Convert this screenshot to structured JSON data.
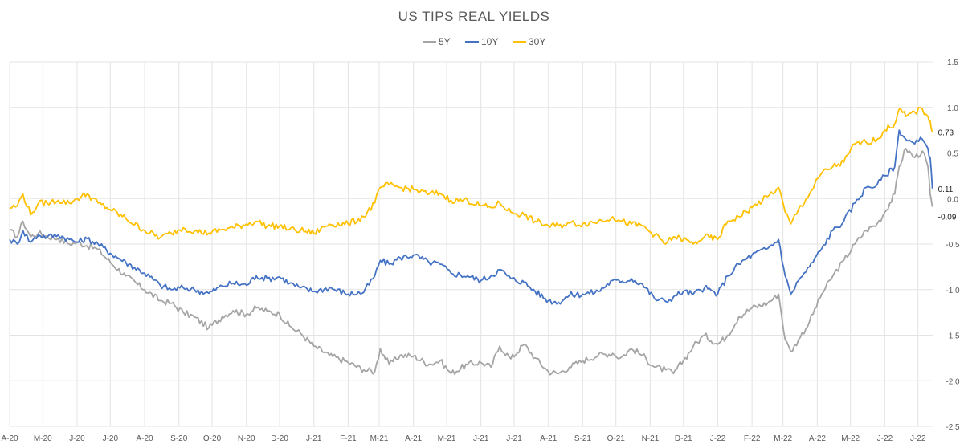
{
  "chart_data": {
    "type": "line",
    "title": "US TIPS REAL YIELDS",
    "legend_position": "top-center",
    "grid": true,
    "y_axis_side": "right",
    "ylim": [
      -2.5,
      1.5
    ],
    "y_ticks": [
      "1.5",
      "1.0",
      "0.5",
      "0.0",
      "-0.5",
      "-1.0",
      "-1.5",
      "-2.0",
      "-2.5"
    ],
    "y_tick_values": [
      1.5,
      1.0,
      0.5,
      0.0,
      -0.5,
      -1.0,
      -1.5,
      -2.0,
      -2.5
    ],
    "x_ticks": [
      "A-20",
      "M-20",
      "J-20",
      "J-20",
      "A-20",
      "S-20",
      "O-20",
      "N-20",
      "D-20",
      "J-21",
      "F-21",
      "M-21",
      "A-21",
      "M-21",
      "J-21",
      "J-21",
      "A-21",
      "S-21",
      "O-21",
      "N-21",
      "D-21",
      "J-22",
      "F-22",
      "M-22",
      "A-22",
      "M-22",
      "J-22",
      "J-22"
    ],
    "x_months": [
      "2020-04",
      "2020-05",
      "2020-06",
      "2020-07",
      "2020-08",
      "2020-09",
      "2020-10",
      "2020-11",
      "2020-12",
      "2021-01",
      "2021-02",
      "2021-03",
      "2021-04",
      "2021-05",
      "2021-06",
      "2021-07",
      "2021-08",
      "2021-09",
      "2021-10",
      "2021-11",
      "2021-12",
      "2022-01",
      "2022-02",
      "2022-03",
      "2022-04",
      "2022-05",
      "2022-06",
      "2022-07"
    ],
    "x_end": "2022-07-15",
    "series": [
      {
        "name": "5Y",
        "color": "#a5a5a5",
        "end_label": "-0.09",
        "points": [
          [
            "2020-04-01",
            -0.35
          ],
          [
            "2020-04-08",
            -0.42
          ],
          [
            "2020-04-13",
            -0.25
          ],
          [
            "2020-04-20",
            -0.42
          ],
          [
            "2020-04-27",
            -0.38
          ],
          [
            "2020-05-05",
            -0.42
          ],
          [
            "2020-05-15",
            -0.44
          ],
          [
            "2020-05-25",
            -0.5
          ],
          [
            "2020-06-01",
            -0.48
          ],
          [
            "2020-06-10",
            -0.52
          ],
          [
            "2020-06-20",
            -0.56
          ],
          [
            "2020-07-01",
            -0.7
          ],
          [
            "2020-07-15",
            -0.85
          ],
          [
            "2020-08-01",
            -1.0
          ],
          [
            "2020-08-15",
            -1.12
          ],
          [
            "2020-08-25",
            -1.15
          ],
          [
            "2020-09-05",
            -1.25
          ],
          [
            "2020-09-15",
            -1.3
          ],
          [
            "2020-09-28",
            -1.42
          ],
          [
            "2020-10-10",
            -1.3
          ],
          [
            "2020-10-20",
            -1.23
          ],
          [
            "2020-11-01",
            -1.27
          ],
          [
            "2020-11-10",
            -1.2
          ],
          [
            "2020-11-20",
            -1.24
          ],
          [
            "2020-12-01",
            -1.27
          ],
          [
            "2020-12-10",
            -1.4
          ],
          [
            "2020-12-20",
            -1.48
          ],
          [
            "2021-01-01",
            -1.62
          ],
          [
            "2021-01-15",
            -1.72
          ],
          [
            "2021-02-01",
            -1.8
          ],
          [
            "2021-02-15",
            -1.88
          ],
          [
            "2021-02-25",
            -1.9
          ],
          [
            "2021-03-02",
            -1.65
          ],
          [
            "2021-03-10",
            -1.82
          ],
          [
            "2021-03-20",
            -1.72
          ],
          [
            "2021-04-01",
            -1.73
          ],
          [
            "2021-04-15",
            -1.82
          ],
          [
            "2021-04-25",
            -1.78
          ],
          [
            "2021-05-05",
            -1.92
          ],
          [
            "2021-05-20",
            -1.82
          ],
          [
            "2021-06-01",
            -1.8
          ],
          [
            "2021-06-10",
            -1.85
          ],
          [
            "2021-06-18",
            -1.62
          ],
          [
            "2021-06-28",
            -1.76
          ],
          [
            "2021-07-10",
            -1.6
          ],
          [
            "2021-07-20",
            -1.75
          ],
          [
            "2021-08-01",
            -1.9
          ],
          [
            "2021-08-10",
            -1.92
          ],
          [
            "2021-08-20",
            -1.85
          ],
          [
            "2021-09-01",
            -1.78
          ],
          [
            "2021-09-15",
            -1.72
          ],
          [
            "2021-09-28",
            -1.7
          ],
          [
            "2021-10-05",
            -1.75
          ],
          [
            "2021-10-15",
            -1.65
          ],
          [
            "2021-10-25",
            -1.72
          ],
          [
            "2021-11-05",
            -1.85
          ],
          [
            "2021-11-15",
            -1.88
          ],
          [
            "2021-11-22",
            -1.92
          ],
          [
            "2021-12-01",
            -1.78
          ],
          [
            "2021-12-10",
            -1.62
          ],
          [
            "2021-12-20",
            -1.5
          ],
          [
            "2022-01-01",
            -1.6
          ],
          [
            "2022-01-10",
            -1.5
          ],
          [
            "2022-01-20",
            -1.3
          ],
          [
            "2022-02-01",
            -1.2
          ],
          [
            "2022-02-15",
            -1.15
          ],
          [
            "2022-02-25",
            -1.05
          ],
          [
            "2022-03-03",
            -1.55
          ],
          [
            "2022-03-08",
            -1.68
          ],
          [
            "2022-03-15",
            -1.55
          ],
          [
            "2022-03-25",
            -1.35
          ],
          [
            "2022-04-05",
            -1.05
          ],
          [
            "2022-04-15",
            -0.85
          ],
          [
            "2022-04-25",
            -0.68
          ],
          [
            "2022-05-05",
            -0.5
          ],
          [
            "2022-05-15",
            -0.35
          ],
          [
            "2022-05-25",
            -0.28
          ],
          [
            "2022-06-01",
            -0.15
          ],
          [
            "2022-06-10",
            0.05
          ],
          [
            "2022-06-14",
            0.35
          ],
          [
            "2022-06-20",
            0.55
          ],
          [
            "2022-06-28",
            0.45
          ],
          [
            "2022-07-05",
            0.52
          ],
          [
            "2022-07-10",
            0.35
          ],
          [
            "2022-07-12",
            0.05
          ],
          [
            "2022-07-14",
            -0.09
          ]
        ]
      },
      {
        "name": "10Y",
        "color": "#4472c4",
        "end_label": "0.11",
        "points": [
          [
            "2020-04-01",
            -0.45
          ],
          [
            "2020-04-08",
            -0.5
          ],
          [
            "2020-04-13",
            -0.35
          ],
          [
            "2020-04-20",
            -0.48
          ],
          [
            "2020-04-27",
            -0.4
          ],
          [
            "2020-05-05",
            -0.42
          ],
          [
            "2020-05-15",
            -0.4
          ],
          [
            "2020-05-25",
            -0.45
          ],
          [
            "2020-06-01",
            -0.48
          ],
          [
            "2020-06-10",
            -0.44
          ],
          [
            "2020-06-20",
            -0.5
          ],
          [
            "2020-07-01",
            -0.6
          ],
          [
            "2020-07-15",
            -0.7
          ],
          [
            "2020-08-01",
            -0.82
          ],
          [
            "2020-08-15",
            -0.95
          ],
          [
            "2020-08-25",
            -1.0
          ],
          [
            "2020-09-05",
            -0.98
          ],
          [
            "2020-09-15",
            -1.0
          ],
          [
            "2020-09-28",
            -1.04
          ],
          [
            "2020-10-10",
            -0.96
          ],
          [
            "2020-10-20",
            -0.93
          ],
          [
            "2020-11-01",
            -0.95
          ],
          [
            "2020-11-10",
            -0.85
          ],
          [
            "2020-11-20",
            -0.88
          ],
          [
            "2020-12-01",
            -0.86
          ],
          [
            "2020-12-10",
            -0.93
          ],
          [
            "2020-12-20",
            -0.98
          ],
          [
            "2021-01-01",
            -1.02
          ],
          [
            "2021-01-15",
            -0.98
          ],
          [
            "2021-02-01",
            -1.05
          ],
          [
            "2021-02-15",
            -1.03
          ],
          [
            "2021-02-25",
            -0.85
          ],
          [
            "2021-03-02",
            -0.68
          ],
          [
            "2021-03-10",
            -0.72
          ],
          [
            "2021-03-20",
            -0.65
          ],
          [
            "2021-04-01",
            -0.62
          ],
          [
            "2021-04-15",
            -0.7
          ],
          [
            "2021-04-25",
            -0.72
          ],
          [
            "2021-05-05",
            -0.82
          ],
          [
            "2021-05-20",
            -0.85
          ],
          [
            "2021-06-01",
            -0.9
          ],
          [
            "2021-06-10",
            -0.85
          ],
          [
            "2021-06-18",
            -0.78
          ],
          [
            "2021-06-28",
            -0.88
          ],
          [
            "2021-07-10",
            -0.92
          ],
          [
            "2021-07-20",
            -1.02
          ],
          [
            "2021-08-01",
            -1.12
          ],
          [
            "2021-08-10",
            -1.14
          ],
          [
            "2021-08-20",
            -1.06
          ],
          [
            "2021-09-01",
            -1.05
          ],
          [
            "2021-09-15",
            -1.02
          ],
          [
            "2021-09-28",
            -0.9
          ],
          [
            "2021-10-05",
            -0.92
          ],
          [
            "2021-10-15",
            -0.88
          ],
          [
            "2021-10-25",
            -0.94
          ],
          [
            "2021-11-05",
            -1.1
          ],
          [
            "2021-11-15",
            -1.13
          ],
          [
            "2021-11-22",
            -1.08
          ],
          [
            "2021-12-01",
            -1.02
          ],
          [
            "2021-12-10",
            -1.05
          ],
          [
            "2021-12-20",
            -0.98
          ],
          [
            "2022-01-01",
            -1.05
          ],
          [
            "2022-01-10",
            -0.85
          ],
          [
            "2022-01-20",
            -0.72
          ],
          [
            "2022-02-01",
            -0.62
          ],
          [
            "2022-02-15",
            -0.55
          ],
          [
            "2022-02-25",
            -0.45
          ],
          [
            "2022-03-03",
            -0.85
          ],
          [
            "2022-03-08",
            -1.05
          ],
          [
            "2022-03-15",
            -0.9
          ],
          [
            "2022-03-25",
            -0.75
          ],
          [
            "2022-04-05",
            -0.55
          ],
          [
            "2022-04-15",
            -0.35
          ],
          [
            "2022-04-25",
            -0.25
          ],
          [
            "2022-05-05",
            -0.05
          ],
          [
            "2022-05-15",
            0.12
          ],
          [
            "2022-05-25",
            0.15
          ],
          [
            "2022-06-01",
            0.25
          ],
          [
            "2022-06-10",
            0.35
          ],
          [
            "2022-06-14",
            0.75
          ],
          [
            "2022-06-20",
            0.65
          ],
          [
            "2022-06-28",
            0.6
          ],
          [
            "2022-07-05",
            0.65
          ],
          [
            "2022-07-10",
            0.55
          ],
          [
            "2022-07-12",
            0.45
          ],
          [
            "2022-07-14",
            0.11
          ]
        ]
      },
      {
        "name": "30Y",
        "color": "#ffc000",
        "end_label": "0.73",
        "points": [
          [
            "2020-04-01",
            -0.1
          ],
          [
            "2020-04-08",
            -0.08
          ],
          [
            "2020-04-13",
            0.05
          ],
          [
            "2020-04-20",
            -0.18
          ],
          [
            "2020-04-27",
            -0.05
          ],
          [
            "2020-05-05",
            -0.05
          ],
          [
            "2020-05-15",
            -0.02
          ],
          [
            "2020-05-25",
            -0.05
          ],
          [
            "2020-06-01",
            0.0
          ],
          [
            "2020-06-10",
            0.05
          ],
          [
            "2020-06-20",
            -0.05
          ],
          [
            "2020-07-01",
            -0.12
          ],
          [
            "2020-07-15",
            -0.22
          ],
          [
            "2020-08-01",
            -0.35
          ],
          [
            "2020-08-15",
            -0.43
          ],
          [
            "2020-08-25",
            -0.38
          ],
          [
            "2020-09-05",
            -0.32
          ],
          [
            "2020-09-15",
            -0.36
          ],
          [
            "2020-09-28",
            -0.38
          ],
          [
            "2020-10-10",
            -0.34
          ],
          [
            "2020-10-20",
            -0.32
          ],
          [
            "2020-11-01",
            -0.28
          ],
          [
            "2020-11-10",
            -0.25
          ],
          [
            "2020-11-20",
            -0.3
          ],
          [
            "2020-12-01",
            -0.3
          ],
          [
            "2020-12-10",
            -0.34
          ],
          [
            "2020-12-20",
            -0.35
          ],
          [
            "2021-01-01",
            -0.38
          ],
          [
            "2021-01-15",
            -0.28
          ],
          [
            "2021-02-01",
            -0.28
          ],
          [
            "2021-02-15",
            -0.2
          ],
          [
            "2021-02-25",
            -0.05
          ],
          [
            "2021-03-02",
            0.12
          ],
          [
            "2021-03-10",
            0.15
          ],
          [
            "2021-03-20",
            0.12
          ],
          [
            "2021-04-01",
            0.1
          ],
          [
            "2021-04-15",
            0.05
          ],
          [
            "2021-04-25",
            0.06
          ],
          [
            "2021-05-05",
            -0.02
          ],
          [
            "2021-05-20",
            -0.02
          ],
          [
            "2021-06-01",
            -0.08
          ],
          [
            "2021-06-10",
            -0.1
          ],
          [
            "2021-06-18",
            -0.05
          ],
          [
            "2021-06-28",
            -0.15
          ],
          [
            "2021-07-10",
            -0.18
          ],
          [
            "2021-07-20",
            -0.25
          ],
          [
            "2021-08-01",
            -0.3
          ],
          [
            "2021-08-10",
            -0.3
          ],
          [
            "2021-08-20",
            -0.27
          ],
          [
            "2021-09-01",
            -0.28
          ],
          [
            "2021-09-15",
            -0.25
          ],
          [
            "2021-09-28",
            -0.2
          ],
          [
            "2021-10-05",
            -0.25
          ],
          [
            "2021-10-15",
            -0.28
          ],
          [
            "2021-10-25",
            -0.3
          ],
          [
            "2021-11-05",
            -0.4
          ],
          [
            "2021-11-15",
            -0.5
          ],
          [
            "2021-11-22",
            -0.42
          ],
          [
            "2021-12-01",
            -0.45
          ],
          [
            "2021-12-10",
            -0.5
          ],
          [
            "2021-12-20",
            -0.42
          ],
          [
            "2022-01-01",
            -0.45
          ],
          [
            "2022-01-10",
            -0.25
          ],
          [
            "2022-01-20",
            -0.2
          ],
          [
            "2022-02-01",
            -0.1
          ],
          [
            "2022-02-15",
            0.02
          ],
          [
            "2022-02-25",
            0.12
          ],
          [
            "2022-03-03",
            -0.15
          ],
          [
            "2022-03-08",
            -0.28
          ],
          [
            "2022-03-15",
            -0.12
          ],
          [
            "2022-03-25",
            0.05
          ],
          [
            "2022-04-05",
            0.28
          ],
          [
            "2022-04-15",
            0.35
          ],
          [
            "2022-04-25",
            0.4
          ],
          [
            "2022-05-05",
            0.6
          ],
          [
            "2022-05-15",
            0.62
          ],
          [
            "2022-05-25",
            0.65
          ],
          [
            "2022-06-01",
            0.75
          ],
          [
            "2022-06-10",
            0.82
          ],
          [
            "2022-06-14",
            0.98
          ],
          [
            "2022-06-20",
            0.9
          ],
          [
            "2022-06-28",
            0.95
          ],
          [
            "2022-07-05",
            0.98
          ],
          [
            "2022-07-10",
            0.9
          ],
          [
            "2022-07-12",
            0.85
          ],
          [
            "2022-07-14",
            0.73
          ]
        ]
      }
    ]
  }
}
